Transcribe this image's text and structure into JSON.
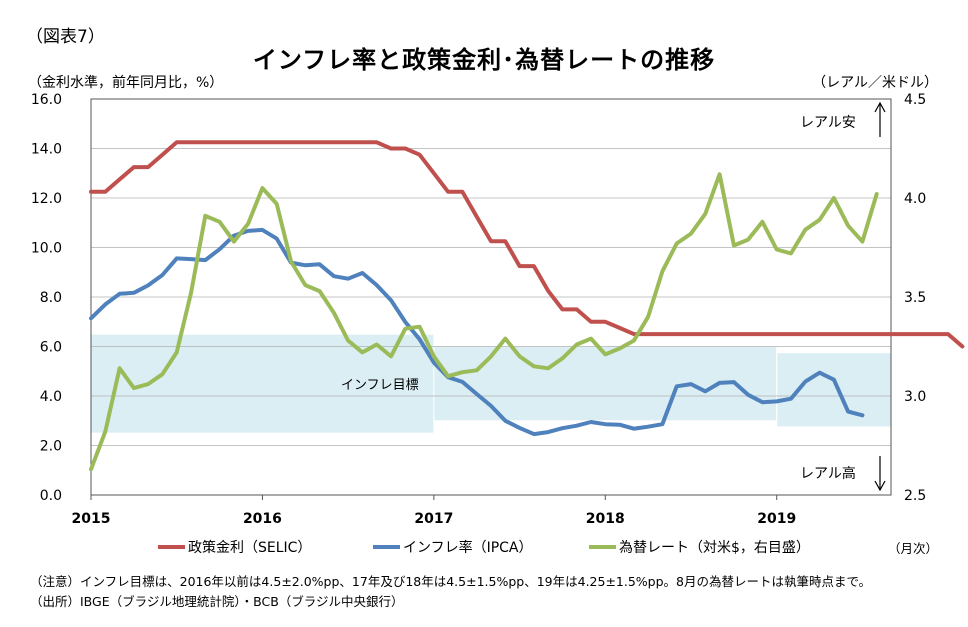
{
  "figure_label": "（図表7）",
  "title": "インフレ率と政策金利･為替レートの推移",
  "left_axis_label": "（金利水準，前年同月比，%）",
  "right_axis_label": "（レアル／米ドル）",
  "x_unit_label": "（月次）",
  "notes": [
    "（注意）インフレ目標は、2016年以前は4.5±2.0%pp、17年及び18年は4.5±1.5%pp、19年は4.25±1.5%pp。8月の為替レートは執筆時点まで。",
    "（出所）IBGE（ブラジル地理統計院）・BCB（ブラジル中央銀行）"
  ],
  "chart_data": {
    "type": "line",
    "x_ticks": [
      "2015",
      "2016",
      "2017",
      "2018",
      "2019"
    ],
    "y_left": {
      "range": [
        0,
        16
      ],
      "ticks": [
        "0.0",
        "2.0",
        "4.0",
        "6.0",
        "8.0",
        "10.0",
        "12.0",
        "14.0",
        "16.0"
      ]
    },
    "y_right": {
      "range": [
        2.5,
        4.5
      ],
      "ticks": [
        "2.5",
        "3.0",
        "3.5",
        "4.0",
        "4.5"
      ]
    },
    "grid": true,
    "legend_position": "bottom",
    "annotations": {
      "depreciation": "レアル安",
      "appreciation": "レアル高",
      "target_band": "インフレ目標"
    },
    "target_bands": [
      {
        "from": "2015-01",
        "to": "2016-12",
        "low": 2.5,
        "high": 6.5
      },
      {
        "from": "2017-01",
        "to": "2018-12",
        "low": 3.0,
        "high": 6.0
      },
      {
        "from": "2019-01",
        "to": "2019-08",
        "low": 2.75,
        "high": 5.75
      }
    ],
    "series": [
      {
        "name": "政策金利（SELIC）",
        "color": "#c0504d",
        "axis": "left",
        "start": "2015-01",
        "values": [
          12.25,
          12.25,
          12.75,
          13.25,
          13.25,
          13.75,
          14.25,
          14.25,
          14.25,
          14.25,
          14.25,
          14.25,
          14.25,
          14.25,
          14.25,
          14.25,
          14.25,
          14.25,
          14.25,
          14.25,
          14.25,
          14.0,
          14.0,
          13.75,
          13.0,
          12.25,
          12.25,
          11.25,
          10.25,
          10.25,
          9.25,
          9.25,
          8.25,
          7.5,
          7.5,
          7.0,
          7.0,
          6.75,
          6.5,
          6.5,
          6.5,
          6.5,
          6.5,
          6.5,
          6.5,
          6.5,
          6.5,
          6.5,
          6.5,
          6.5,
          6.5,
          6.5,
          6.5,
          6.5,
          6.5,
          6.5,
          6.5,
          6.5,
          6.5,
          6.5,
          6.5,
          6.0
        ]
      },
      {
        "name": "インフレ率（IPCA）",
        "color": "#4f81bd",
        "axis": "left",
        "start": "2015-01",
        "values": [
          7.14,
          7.7,
          8.13,
          8.17,
          8.47,
          8.89,
          9.56,
          9.53,
          9.49,
          9.93,
          10.48,
          10.67,
          10.71,
          10.36,
          9.39,
          9.28,
          9.32,
          8.84,
          8.74,
          8.97,
          8.48,
          7.87,
          6.99,
          6.29,
          5.35,
          4.76,
          4.57,
          4.08,
          3.6,
          3.0,
          2.71,
          2.46,
          2.54,
          2.7,
          2.8,
          2.95,
          2.86,
          2.84,
          2.68,
          2.76,
          2.86,
          4.39,
          4.48,
          4.19,
          4.53,
          4.56,
          4.05,
          3.75,
          3.78,
          3.89,
          4.58,
          4.94,
          4.66,
          3.37,
          3.22
        ]
      },
      {
        "name": "為替レート（対米$，右目盛）",
        "color": "#9bbb59",
        "axis": "right",
        "start": "2015-01",
        "values": [
          2.63,
          2.82,
          3.14,
          3.04,
          3.06,
          3.11,
          3.22,
          3.52,
          3.91,
          3.88,
          3.78,
          3.87,
          4.05,
          3.97,
          3.68,
          3.56,
          3.53,
          3.42,
          3.28,
          3.22,
          3.26,
          3.2,
          3.34,
          3.35,
          3.2,
          3.1,
          3.12,
          3.13,
          3.2,
          3.29,
          3.2,
          3.15,
          3.14,
          3.19,
          3.26,
          3.29,
          3.21,
          3.24,
          3.28,
          3.4,
          3.63,
          3.77,
          3.82,
          3.92,
          4.12,
          3.76,
          3.79,
          3.88,
          3.74,
          3.72,
          3.84,
          3.89,
          4.0,
          3.86,
          3.78,
          4.02
        ]
      }
    ]
  }
}
